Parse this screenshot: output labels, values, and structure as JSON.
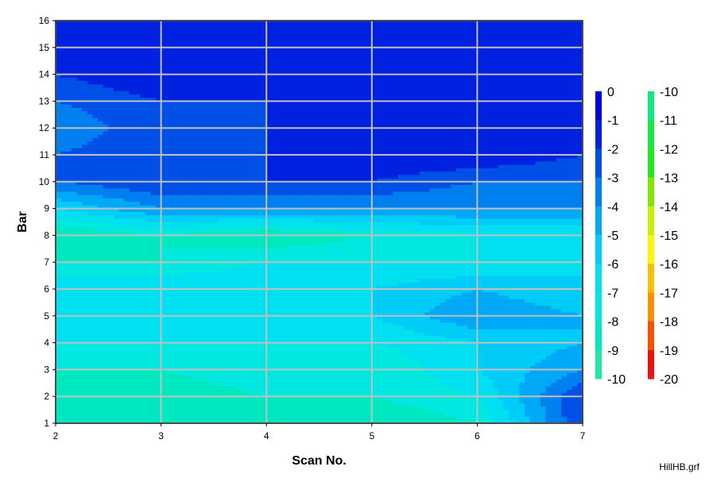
{
  "chart_data": {
    "type": "heatmap",
    "title": "",
    "xlabel": "Scan No.",
    "ylabel": "Bar",
    "xlim": [
      2,
      7
    ],
    "ylim": [
      1,
      16
    ],
    "x_ticks": [
      2,
      3,
      4,
      5,
      6,
      7
    ],
    "y_ticks": [
      1,
      2,
      3,
      4,
      5,
      6,
      7,
      8,
      9,
      10,
      11,
      12,
      13,
      14,
      15,
      16
    ],
    "grid": true,
    "x": [
      2,
      3,
      4,
      5,
      6,
      7
    ],
    "y": [
      1,
      2,
      3,
      4,
      5,
      6,
      7,
      8,
      9,
      10,
      11,
      12,
      13,
      14,
      15,
      16
    ],
    "z": [
      [
        -8,
        -8,
        -9,
        -9,
        -8,
        -2
      ],
      [
        -8,
        -9,
        -8,
        -8,
        -7,
        -2
      ],
      [
        -8,
        -8,
        -7,
        -8,
        -6,
        -4
      ],
      [
        -7,
        -7,
        -7,
        -7,
        -6,
        -5
      ],
      [
        -6,
        -7,
        -6,
        -6,
        -4,
        -5
      ],
      [
        -6,
        -6,
        -6,
        -6,
        -5,
        -6
      ],
      [
        -8,
        -8,
        -7,
        -7,
        -7,
        -6
      ],
      [
        -9,
        -8,
        -9,
        -8,
        -7,
        -7
      ],
      [
        -6,
        -4,
        -4,
        -4,
        -4,
        -4
      ],
      [
        -3,
        -2,
        -2,
        -2,
        -3,
        -3
      ],
      [
        -3,
        -2,
        -2,
        -1,
        -1,
        -2
      ],
      [
        -4,
        -2,
        -2,
        -1,
        -1,
        -1
      ],
      [
        -3,
        -2,
        -2,
        -1,
        -1,
        -1
      ],
      [
        -2,
        -1,
        -1,
        -1,
        -2,
        -2
      ],
      [
        -2,
        -1,
        -1,
        -1,
        -1,
        -2
      ],
      [
        -2,
        -1,
        -1,
        -1,
        -1,
        -2
      ]
    ],
    "colorbars": [
      {
        "range": [
          0,
          -10
        ],
        "labels": [
          "0",
          "-1",
          "-2",
          "-3",
          "-4",
          "-5",
          "-6",
          "-7",
          "-8",
          "-9",
          "-10"
        ],
        "colors": [
          "#0000d8",
          "#0022e0",
          "#0050e8",
          "#0080f0",
          "#00a8f8",
          "#00ccf8",
          "#00e0f0",
          "#00e8e0",
          "#00e8c0",
          "#20e8a0"
        ]
      },
      {
        "range": [
          -10,
          -20
        ],
        "labels": [
          "-10",
          "-11",
          "-12",
          "-13",
          "-14",
          "-15",
          "-16",
          "-17",
          "-18",
          "-19",
          "-20"
        ],
        "colors": [
          "#10e880",
          "#18e840",
          "#20e820",
          "#80e800",
          "#c8f000",
          "#f8f800",
          "#f8c000",
          "#f89000",
          "#f85000",
          "#f01010"
        ]
      }
    ]
  },
  "footer": "HillHB.grf"
}
